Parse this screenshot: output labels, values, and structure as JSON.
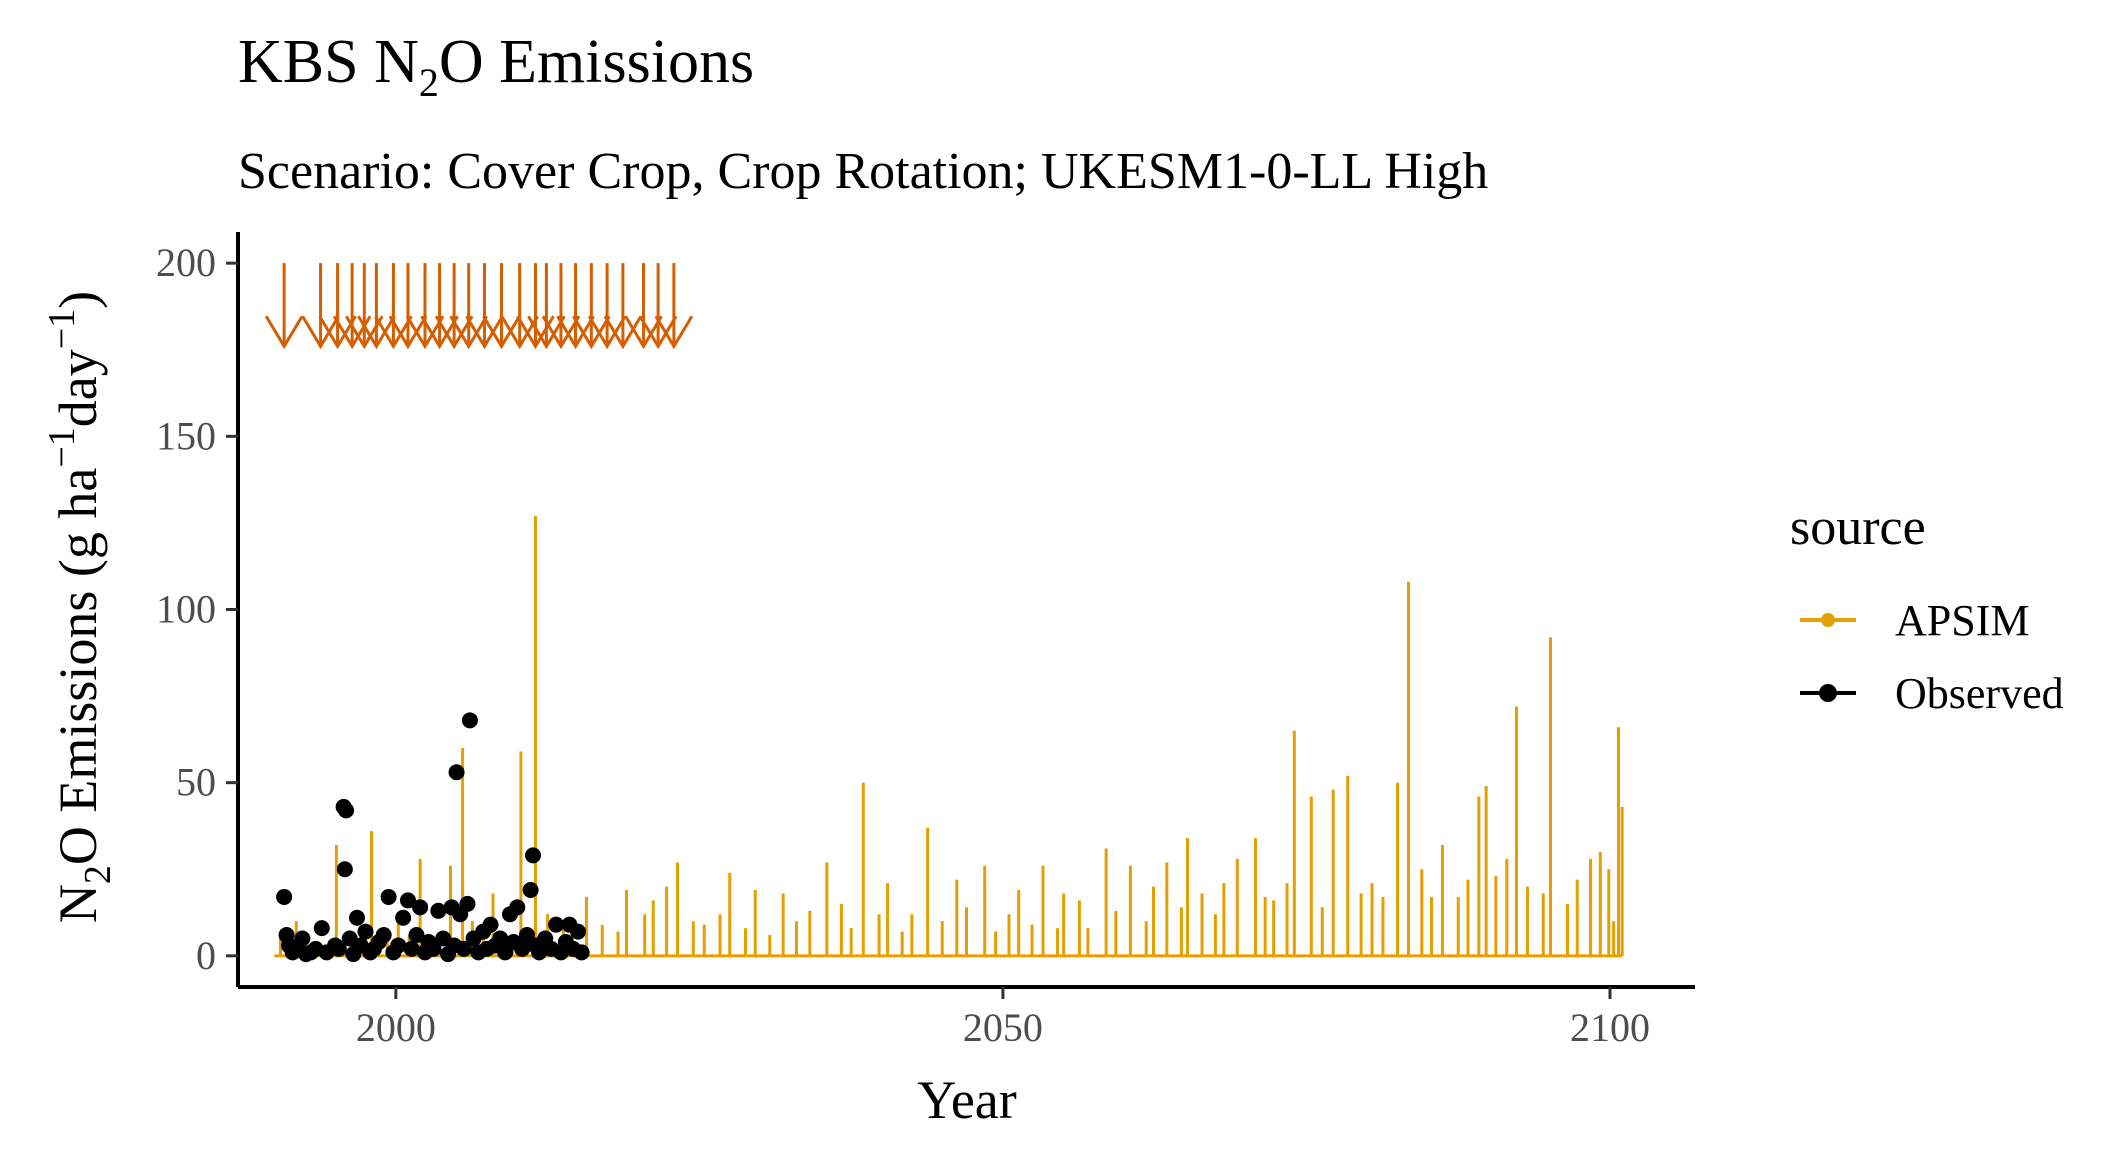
{
  "chart_data": {
    "type": "line",
    "title_main": "KBS N",
    "title_sub": "2",
    "title_rest": "O Emissions",
    "subtitle": "Scenario: Cover Crop, Crop Rotation; UKESM1-0-LL High",
    "xlabel": "Year",
    "ylabel_parts": {
      "a": "N",
      "sub": "2",
      "b": "O Emissions (g ha",
      "sup1": "−1",
      "c": "day",
      "sup2": "−1",
      "d": ")"
    },
    "xlim": [
      1987,
      2107
    ],
    "ylim": [
      -9,
      209
    ],
    "x_ticks": [
      2000,
      2050,
      2100
    ],
    "x_tick_labels": [
      "2000",
      "2050",
      "2100"
    ],
    "y_ticks": [
      0,
      50,
      100,
      150,
      200
    ],
    "y_tick_labels": [
      "0",
      "50",
      "100",
      "150",
      "200"
    ],
    "grid": false,
    "legend": {
      "title": "source",
      "position": "right",
      "entries": [
        {
          "label": "APSIM",
          "color": "#E69F00"
        },
        {
          "label": "Observed",
          "color": "#000000"
        }
      ]
    },
    "colors": {
      "apsim": "#E69F00",
      "observed": "#000000",
      "arrows": "#D55E00"
    },
    "series": [
      {
        "name": "APSIM",
        "kind": "line",
        "spikes": [
          [
            1990.5,
            6
          ],
          [
            1991.8,
            10
          ],
          [
            1993.2,
            4
          ],
          [
            1995.1,
            32
          ],
          [
            1996.4,
            7
          ],
          [
            1997.2,
            4
          ],
          [
            1998.0,
            36
          ],
          [
            1999.3,
            8
          ],
          [
            2000.2,
            12
          ],
          [
            2001.1,
            6
          ],
          [
            2002.0,
            28
          ],
          [
            2003.5,
            5
          ],
          [
            2004.5,
            26
          ],
          [
            2005.5,
            60
          ],
          [
            2006.3,
            10
          ],
          [
            2007.2,
            5
          ],
          [
            2008.0,
            18
          ],
          [
            2009.6,
            6
          ],
          [
            2010.3,
            59
          ],
          [
            2011.5,
            127
          ],
          [
            2012.5,
            12
          ],
          [
            2013.8,
            8
          ],
          [
            2014.5,
            6
          ],
          [
            2015.7,
            17
          ],
          [
            2017.0,
            9
          ],
          [
            2018.3,
            7
          ],
          [
            2019.0,
            19
          ],
          [
            2020.5,
            12
          ],
          [
            2021.2,
            16
          ],
          [
            2022.3,
            20
          ],
          [
            2023.2,
            27
          ],
          [
            2024.5,
            10
          ],
          [
            2025.4,
            9
          ],
          [
            2026.7,
            12
          ],
          [
            2027.5,
            24
          ],
          [
            2028.8,
            8
          ],
          [
            2029.6,
            19
          ],
          [
            2030.8,
            6
          ],
          [
            2031.9,
            18
          ],
          [
            2033.0,
            10
          ],
          [
            2034.1,
            13
          ],
          [
            2035.5,
            27
          ],
          [
            2036.7,
            15
          ],
          [
            2037.5,
            8
          ],
          [
            2038.5,
            50
          ],
          [
            2039.8,
            12
          ],
          [
            2040.5,
            21
          ],
          [
            2041.7,
            7
          ],
          [
            2042.5,
            12
          ],
          [
            2043.8,
            37
          ],
          [
            2045.0,
            10
          ],
          [
            2046.2,
            22
          ],
          [
            2047.0,
            14
          ],
          [
            2048.5,
            26
          ],
          [
            2049.4,
            7
          ],
          [
            2050.5,
            12
          ],
          [
            2051.3,
            19
          ],
          [
            2052.4,
            9
          ],
          [
            2053.3,
            26
          ],
          [
            2054.5,
            8
          ],
          [
            2055.0,
            18
          ],
          [
            2056.3,
            16
          ],
          [
            2057.0,
            8
          ],
          [
            2058.5,
            31
          ],
          [
            2059.3,
            13
          ],
          [
            2060.5,
            26
          ],
          [
            2061.8,
            10
          ],
          [
            2062.4,
            20
          ],
          [
            2063.5,
            27
          ],
          [
            2064.7,
            14
          ],
          [
            2065.2,
            34
          ],
          [
            2066.4,
            18
          ],
          [
            2067.5,
            12
          ],
          [
            2068.2,
            21
          ],
          [
            2069.3,
            28
          ],
          [
            2070.8,
            34
          ],
          [
            2071.6,
            17
          ],
          [
            2072.3,
            16
          ],
          [
            2073.4,
            21
          ],
          [
            2074.0,
            65
          ],
          [
            2075.4,
            46
          ],
          [
            2076.3,
            14
          ],
          [
            2077.2,
            48
          ],
          [
            2078.4,
            52
          ],
          [
            2079.5,
            18
          ],
          [
            2080.4,
            21
          ],
          [
            2081.3,
            17
          ],
          [
            2082.5,
            50
          ],
          [
            2083.4,
            108
          ],
          [
            2084.5,
            25
          ],
          [
            2085.3,
            17
          ],
          [
            2086.2,
            32
          ],
          [
            2087.5,
            17
          ],
          [
            2088.3,
            22
          ],
          [
            2089.2,
            46
          ],
          [
            2089.8,
            49
          ],
          [
            2090.6,
            23
          ],
          [
            2091.5,
            28
          ],
          [
            2092.3,
            72
          ],
          [
            2093.2,
            20
          ],
          [
            2094.5,
            18
          ],
          [
            2095.1,
            92
          ],
          [
            2096.5,
            15
          ],
          [
            2097.3,
            22
          ],
          [
            2098.4,
            28
          ],
          [
            2099.2,
            30
          ],
          [
            2099.9,
            25
          ],
          [
            2100.3,
            10
          ],
          [
            2100.7,
            66
          ],
          [
            2101.0,
            43
          ]
        ]
      },
      {
        "name": "Observed",
        "kind": "points",
        "points": [
          [
            1990.8,
            17
          ],
          [
            1991.0,
            6
          ],
          [
            1991.2,
            3
          ],
          [
            1991.5,
            1
          ],
          [
            1992.0,
            2
          ],
          [
            1992.3,
            5
          ],
          [
            1992.6,
            0.5
          ],
          [
            1993.0,
            1
          ],
          [
            1993.4,
            2
          ],
          [
            1993.9,
            8
          ],
          [
            1994.3,
            1
          ],
          [
            1995.0,
            3
          ],
          [
            1995.3,
            2
          ],
          [
            1995.7,
            43
          ],
          [
            1995.9,
            42
          ],
          [
            1995.8,
            25
          ],
          [
            1996.2,
            5
          ],
          [
            1996.5,
            0.5
          ],
          [
            1996.8,
            11
          ],
          [
            1997.1,
            3
          ],
          [
            1997.5,
            7
          ],
          [
            1997.9,
            1
          ],
          [
            1998.2,
            2
          ],
          [
            1998.6,
            4
          ],
          [
            1999.0,
            6
          ],
          [
            1999.4,
            17
          ],
          [
            1999.8,
            1
          ],
          [
            2000.2,
            3
          ],
          [
            2000.6,
            11
          ],
          [
            2001.0,
            16
          ],
          [
            2001.3,
            2
          ],
          [
            2001.7,
            6
          ],
          [
            2002.0,
            14
          ],
          [
            2002.4,
            1
          ],
          [
            2002.7,
            4
          ],
          [
            2003.1,
            2
          ],
          [
            2003.5,
            13
          ],
          [
            2003.9,
            5
          ],
          [
            2004.3,
            0.5
          ],
          [
            2004.6,
            14
          ],
          [
            2004.8,
            3
          ],
          [
            2005.0,
            53
          ],
          [
            2005.3,
            12
          ],
          [
            2005.6,
            2
          ],
          [
            2005.9,
            15
          ],
          [
            2006.1,
            68
          ],
          [
            2006.4,
            5
          ],
          [
            2006.8,
            1
          ],
          [
            2007.2,
            7
          ],
          [
            2007.5,
            2
          ],
          [
            2007.8,
            9
          ],
          [
            2008.2,
            3
          ],
          [
            2008.6,
            5
          ],
          [
            2009.0,
            1
          ],
          [
            2009.4,
            12
          ],
          [
            2009.7,
            4
          ],
          [
            2010.0,
            14
          ],
          [
            2010.4,
            2
          ],
          [
            2010.8,
            6
          ],
          [
            2011.1,
            19
          ],
          [
            2011.3,
            29
          ],
          [
            2011.5,
            3
          ],
          [
            2011.8,
            1
          ],
          [
            2012.3,
            5
          ],
          [
            2012.8,
            2
          ],
          [
            2013.2,
            9
          ],
          [
            2013.6,
            1
          ],
          [
            2014.0,
            4
          ],
          [
            2014.3,
            9
          ],
          [
            2014.6,
            2
          ],
          [
            2015.0,
            7
          ],
          [
            2015.3,
            1
          ]
        ]
      }
    ],
    "arrows": {
      "top_value": 200,
      "bottom_value": 176,
      "years": [
        1990.8,
        1993.8,
        1995.2,
        1996.4,
        1997.4,
        1998.4,
        1999.8,
        2001.0,
        2002.4,
        2003.6,
        2004.8,
        2006.0,
        2007.3,
        2008.7,
        2010.2,
        2011.5,
        2012.4,
        2013.6,
        2014.8,
        2016.1,
        2017.4,
        2018.7,
        2020.4,
        2021.6,
        2022.9
      ]
    }
  }
}
